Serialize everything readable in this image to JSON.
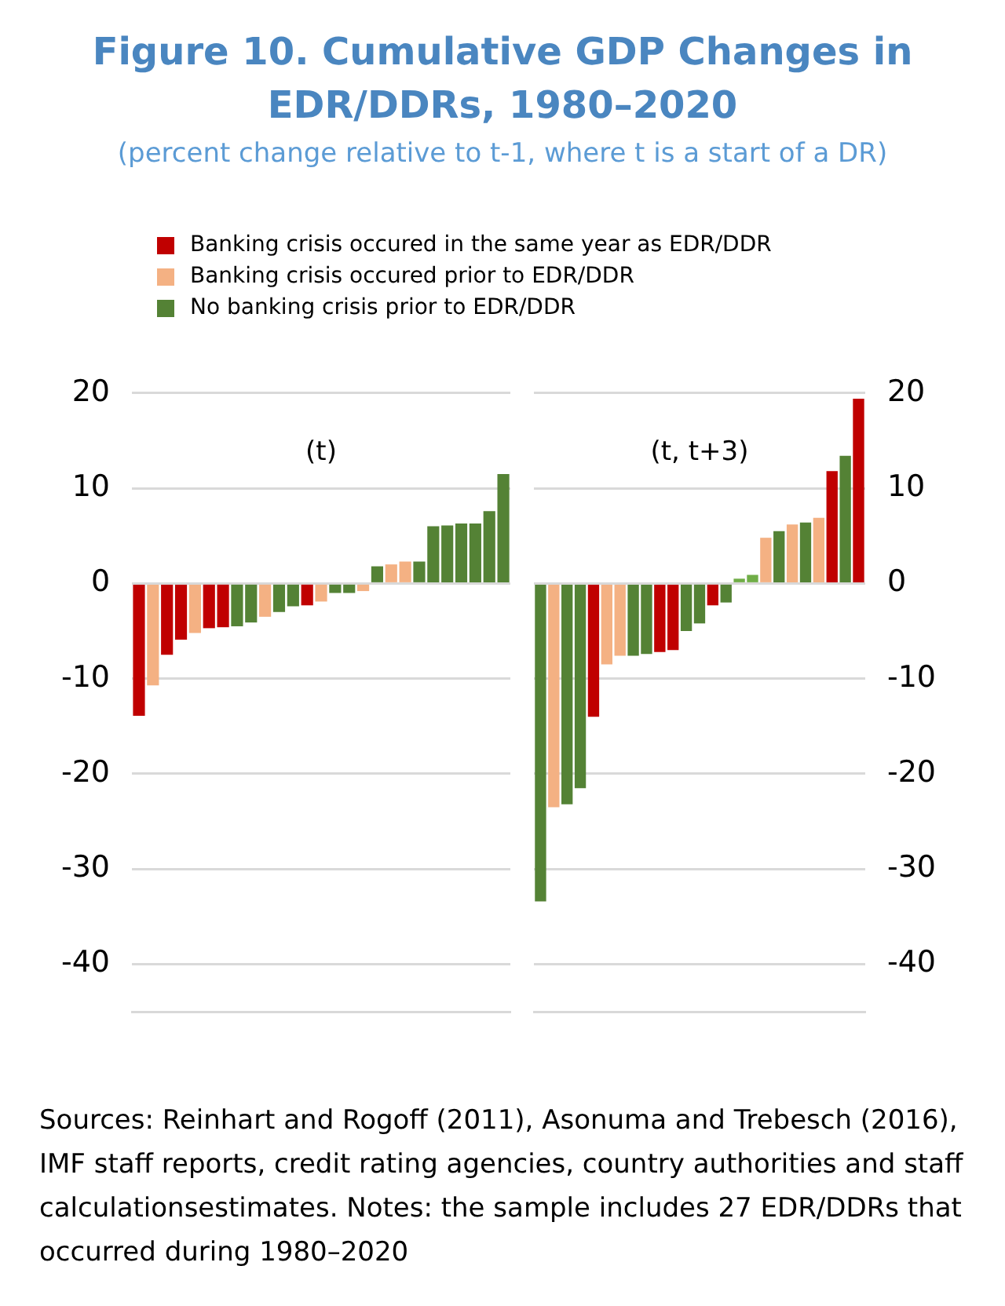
{
  "chart_data": [
    {
      "type": "bar",
      "title": "Figure 10. Cumulative GDP Changes in EDR/DDRs, 1980–2020",
      "subtitle": "(percent change relative to t-1, where t is a start of a DR)",
      "categories": [
        null,
        null,
        null,
        null,
        null,
        null,
        null,
        null,
        null,
        null,
        null,
        null,
        null,
        null,
        null,
        null,
        null,
        null,
        null,
        null,
        null,
        null,
        null,
        null,
        null,
        null,
        null
      ],
      "series": [
        {
          "name": "Banking crisis occured in the same year as EDR/DDR",
          "color": "#c00000",
          "values": [
            -13.9,
            null,
            -7.5,
            -5.9,
            null,
            -4.7,
            -4.6,
            null,
            null,
            null,
            null,
            null,
            -2.3,
            null,
            null,
            null,
            null,
            null,
            null,
            null,
            null,
            null,
            null,
            null,
            null,
            null,
            null
          ]
        },
        {
          "name": "Banking crisis occured prior to EDR/DDR",
          "color": "#f4b183",
          "values": [
            null,
            -10.7,
            null,
            null,
            -5.2,
            null,
            null,
            null,
            null,
            -3.5,
            null,
            null,
            null,
            -1.9,
            null,
            null,
            -0.8,
            null,
            2.0,
            2.3,
            null,
            null,
            null,
            null,
            null,
            null,
            null
          ]
        },
        {
          "name": "No banking crisis prior to EDR/DDR",
          "color": "#548235",
          "values": [
            null,
            null,
            null,
            null,
            null,
            null,
            null,
            -4.5,
            -4.1,
            null,
            -3.0,
            -2.4,
            null,
            null,
            -1.0,
            -1.0,
            null,
            1.8,
            null,
            null,
            2.3,
            6.0,
            6.1,
            6.3,
            6.3,
            7.6,
            11.5
          ]
        }
      ],
      "ylim": [
        -45,
        20
      ],
      "yticks": [
        -40,
        -30,
        -20,
        -10,
        0,
        10,
        20
      ],
      "grid": "y",
      "legend": "top",
      "tick_labels": "y",
      "annotations": [
        "(t)",
        "Sources: Reinhart and Rogoff (2011), Asonuma and Trebesch (2016), IMF staff reports, credit rating agencies, country authorities and staff calculationsestimates.  Notes: the sample includes 27 EDR/DDRs that occurred during 1980–2020"
      ]
    },
    {
      "type": "bar",
      "categories": [
        null,
        null,
        null,
        null,
        null,
        null,
        null,
        null,
        null,
        null,
        null,
        null,
        null,
        null,
        null,
        null,
        null,
        null,
        null,
        null,
        null,
        null,
        null,
        null,
        null
      ],
      "series": [
        {
          "color": "#c00000",
          "values": [
            null,
            null,
            null,
            null,
            -14.0,
            null,
            null,
            null,
            null,
            -7.2,
            -7.0,
            null,
            null,
            -2.3,
            null,
            null,
            null,
            null,
            null,
            null,
            null,
            null,
            11.8,
            null,
            19.4
          ]
        },
        {
          "color": "#f4b183",
          "values": [
            null,
            -23.5,
            null,
            null,
            null,
            -8.5,
            -7.6,
            null,
            null,
            null,
            null,
            null,
            null,
            null,
            null,
            null,
            null,
            4.8,
            null,
            6.2,
            null,
            6.9,
            null,
            null,
            null
          ]
        },
        {
          "color": "#548235",
          "values": [
            -33.4,
            null,
            -23.2,
            -21.5,
            null,
            null,
            null,
            -7.6,
            -7.4,
            null,
            null,
            -5.0,
            -4.2,
            null,
            -2.0,
            null,
            null,
            null,
            5.5,
            null,
            6.4,
            null,
            null,
            13.4,
            null
          ]
        },
        {
          "color": "#70ad47",
          "values": [
            null,
            null,
            null,
            null,
            null,
            null,
            null,
            null,
            null,
            null,
            null,
            null,
            null,
            null,
            null,
            0.5,
            0.9,
            null,
            null,
            null,
            null,
            null,
            null,
            null,
            null
          ]
        }
      ],
      "ylim": [
        -45,
        20
      ],
      "yticks": [
        -40,
        -30,
        -20,
        -10,
        0,
        10,
        20
      ],
      "grid": "y",
      "tick_labels": "y",
      "annotations": [
        "(t, t+3)"
      ]
    }
  ]
}
